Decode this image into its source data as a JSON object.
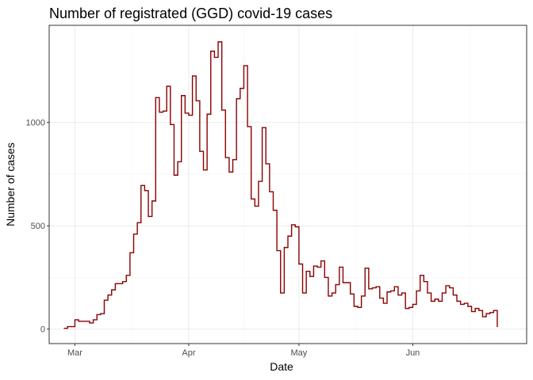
{
  "chart_data": {
    "type": "line",
    "title": "Number of registrated (GGD) covid-19 cases",
    "xlabel": "Date",
    "ylabel": "Number of cases",
    "line_color": "#8b0000",
    "grid": true,
    "x_tick_labels": [
      "Mar",
      "Apr",
      "May",
      "Jun"
    ],
    "x_tick_dates": [
      "2020-03-01",
      "2020-04-01",
      "2020-05-01",
      "2020-06-01"
    ],
    "y_ticks": [
      0,
      500,
      1000
    ],
    "y_tick_labels": [
      "0",
      "500",
      "1000"
    ],
    "xlim": [
      "2020-02-23",
      "2020-07-02"
    ],
    "ylim": [
      -70,
      1470
    ],
    "series": [
      {
        "start_date": "2020-02-27",
        "step": "day",
        "values": [
          4,
          12,
          12,
          45,
          38,
          38,
          38,
          30,
          45,
          70,
          75,
          140,
          165,
          190,
          220,
          220,
          230,
          260,
          370,
          460,
          515,
          695,
          670,
          545,
          620,
          1120,
          1050,
          1055,
          1175,
          990,
          745,
          810,
          1130,
          1045,
          1035,
          1225,
          1105,
          860,
          770,
          1040,
          1345,
          1315,
          1390,
          1060,
          830,
          760,
          820,
          1115,
          1165,
          1275,
          980,
          630,
          595,
          715,
          975,
          800,
          665,
          575,
          380,
          175,
          395,
          450,
          505,
          495,
          315,
          175,
          280,
          255,
          305,
          300,
          330,
          250,
          160,
          175,
          215,
          300,
          225,
          225,
          170,
          110,
          105,
          160,
          295,
          195,
          200,
          205,
          150,
          125,
          180,
          185,
          205,
          165,
          175,
          100,
          105,
          120,
          185,
          260,
          230,
          175,
          135,
          145,
          135,
          175,
          210,
          200,
          165,
          135,
          120,
          125,
          110,
          85,
          100,
          90,
          60,
          75,
          80,
          90,
          10
        ]
      }
    ]
  }
}
